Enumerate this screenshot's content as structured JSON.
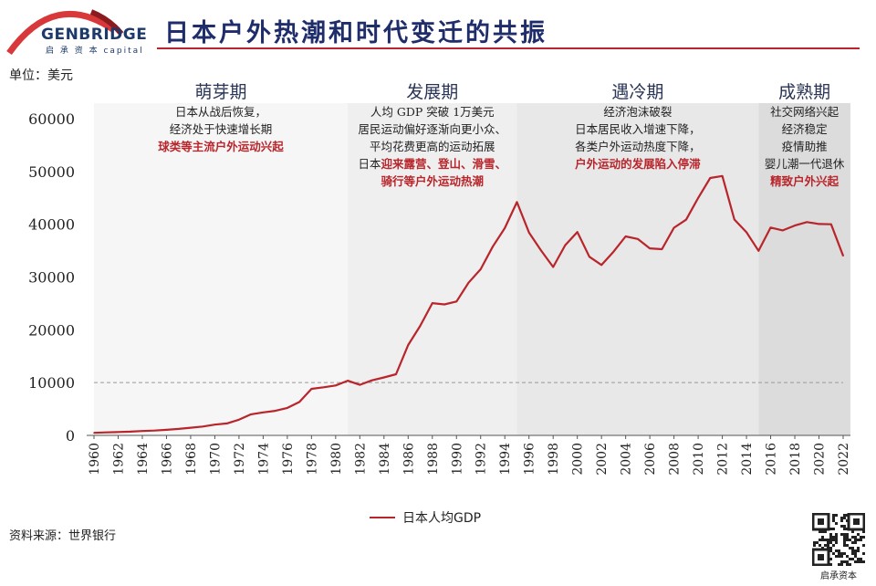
{
  "header": {
    "title": "日本户外热潮和时代变迁的共振",
    "logo_name": "GENBRIDGE",
    "logo_sub": "启 承 资 本 capital"
  },
  "unit": "单位：美元",
  "periods": [
    {
      "title": "萌芽期",
      "lines": [
        {
          "text": "日本从战后恢复，",
          "parts": [
            {
              "t": "日本从战后恢复，",
              "hl": false
            }
          ]
        },
        {
          "parts": [
            {
              "t": "经济处于快速增长期",
              "hl": false
            }
          ]
        },
        {
          "parts": [
            {
              "t": "球类等主流户外运动兴起",
              "hl": true
            }
          ]
        }
      ],
      "start": 1960,
      "end": 1981,
      "bg": "#f6f6f6"
    },
    {
      "title": "发展期",
      "lines": [
        {
          "parts": [
            {
              "t": "人均 GDP 突破 1万美元",
              "hl": false
            }
          ]
        },
        {
          "parts": [
            {
              "t": "居民运动偏好逐渐向更小众、",
              "hl": false
            }
          ]
        },
        {
          "parts": [
            {
              "t": "平均花费更高的运动拓展",
              "hl": false
            }
          ]
        },
        {
          "parts": [
            {
              "t": "日本",
              "hl": false
            },
            {
              "t": "迎来露营、登山、滑雪、",
              "hl": true
            }
          ]
        },
        {
          "parts": [
            {
              "t": "骑行等户外运动热潮",
              "hl": true
            }
          ]
        }
      ],
      "start": 1981,
      "end": 1995,
      "bg": "#efefef"
    },
    {
      "title": "遇冷期",
      "lines": [
        {
          "parts": [
            {
              "t": "经济泡沫破裂",
              "hl": false
            }
          ]
        },
        {
          "parts": [
            {
              "t": "日本居民收入增速下降，",
              "hl": false
            }
          ]
        },
        {
          "parts": [
            {
              "t": "各类户外运动热度下降，",
              "hl": false
            }
          ]
        },
        {
          "parts": [
            {
              "t": "户外运动的发展陷入停滞",
              "hl": true
            }
          ]
        }
      ],
      "start": 1995,
      "end": 2015,
      "bg": "#e8e8e8"
    },
    {
      "title": "成熟期",
      "lines": [
        {
          "parts": [
            {
              "t": "社交网络兴起",
              "hl": false
            }
          ]
        },
        {
          "parts": [
            {
              "t": "经济稳定",
              "hl": false
            }
          ]
        },
        {
          "parts": [
            {
              "t": "疫情助推",
              "hl": false
            }
          ]
        },
        {
          "parts": [
            {
              "t": "婴儿潮一代退休",
              "hl": false
            }
          ]
        },
        {
          "parts": [
            {
              "t": "精致户外兴起",
              "hl": true
            }
          ]
        }
      ],
      "start": 2015,
      "end": 2022.6,
      "bg": "#dcdcdc"
    }
  ],
  "chart_data": {
    "type": "line",
    "title": "",
    "xlabel": "",
    "ylabel": "",
    "ylim": [
      0,
      60000
    ],
    "yticks": [
      0,
      10000,
      20000,
      30000,
      40000,
      50000,
      60000
    ],
    "xticks": [
      1960,
      1962,
      1964,
      1966,
      1968,
      1970,
      1972,
      1974,
      1976,
      1978,
      1980,
      1982,
      1984,
      1986,
      1988,
      1990,
      1992,
      1994,
      1996,
      1998,
      2000,
      2002,
      2004,
      2006,
      2008,
      2010,
      2012,
      2014,
      2016,
      2018,
      2020,
      2022
    ],
    "xlim": [
      1960,
      2022
    ],
    "reference_line": {
      "value": 10000,
      "style": "dashed"
    },
    "legend_position": "bottom",
    "series": [
      {
        "name": "日本人均GDP",
        "color": "#b8252b",
        "x": [
          1960,
          1961,
          1962,
          1963,
          1964,
          1965,
          1966,
          1967,
          1968,
          1969,
          1970,
          1971,
          1972,
          1973,
          1974,
          1975,
          1976,
          1977,
          1978,
          1979,
          1980,
          1981,
          1982,
          1983,
          1984,
          1985,
          1986,
          1987,
          1988,
          1989,
          1990,
          1991,
          1992,
          1993,
          1994,
          1995,
          1996,
          1997,
          1998,
          1999,
          2000,
          2001,
          2002,
          2003,
          2004,
          2005,
          2006,
          2007,
          2008,
          2009,
          2010,
          2011,
          2012,
          2013,
          2014,
          2015,
          2016,
          2017,
          2018,
          2019,
          2020,
          2021,
          2022
        ],
        "values": [
          479,
          563,
          633,
          717,
          835,
          919,
          1058,
          1229,
          1451,
          1669,
          2037,
          2272,
          2967,
          3997,
          4354,
          4659,
          5197,
          6335,
          8821,
          9105,
          9463,
          10361,
          9578,
          10425,
          10984,
          11585,
          17112,
          20745,
          25052,
          24813,
          25371,
          28925,
          31465,
          35766,
          39269,
          44200,
          38437,
          35022,
          31903,
          36026,
          38532,
          33846,
          32289,
          34808,
          37689,
          37218,
          35434,
          35275,
          39339,
          40855,
          44968,
          48760,
          49145,
          40898,
          38475,
          34961,
          39375,
          38834,
          39751,
          40416,
          40041,
          39987,
          34017
        ]
      }
    ]
  },
  "legend_label": "日本人均GDP",
  "source": "资料来源：世界银行",
  "qr_label": "启承资本"
}
